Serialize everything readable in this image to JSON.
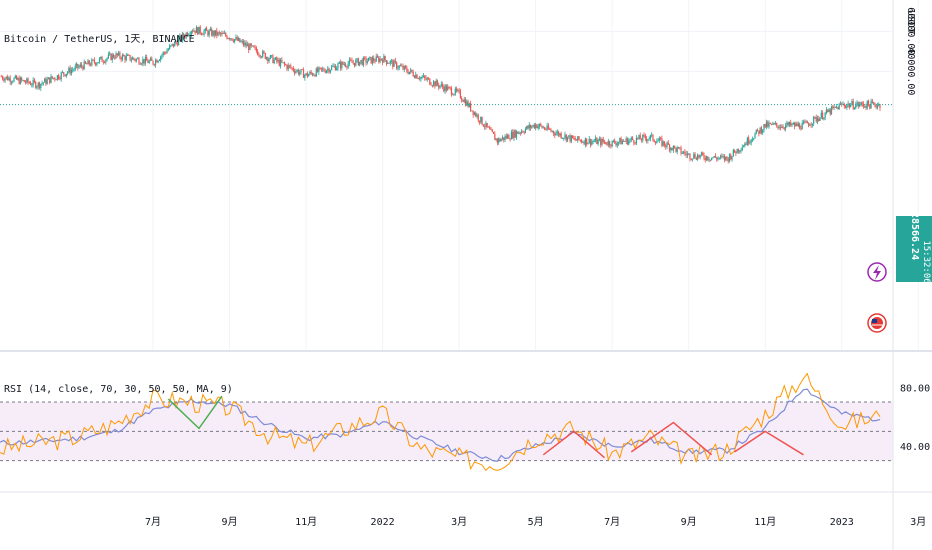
{
  "symbol_label": "Bitcoin / TetherUS, 1天, BINANCE",
  "indicator_label": "RSI (14, close, 70, 30, 50, 50, MA, 9)",
  "price_axis": {
    "unit": "USDT",
    "ticks": [
      {
        "label": "60000.00",
        "value": 60000
      },
      {
        "label": "40000.00",
        "value": 40000
      }
    ]
  },
  "rsi_axis": {
    "ticks": [
      {
        "label": "80.00",
        "value": 80
      },
      {
        "label": "40.00",
        "value": 40
      }
    ]
  },
  "time_axis": {
    "labels": [
      {
        "label": "7月",
        "index": 4
      },
      {
        "label": "9月",
        "index": 6
      },
      {
        "label": "11月",
        "index": 8
      },
      {
        "label": "2022",
        "index": 10
      },
      {
        "label": "3月",
        "index": 12
      },
      {
        "label": "5月",
        "index": 14
      },
      {
        "label": "7月",
        "index": 16
      },
      {
        "label": "9月",
        "index": 18
      },
      {
        "label": "11月",
        "index": 20
      },
      {
        "label": "2023",
        "index": 22
      },
      {
        "label": "3月",
        "index": 24
      }
    ]
  },
  "current_price": {
    "label": "28566.24",
    "countdown": "15:32:06",
    "value": 28566.24
  },
  "colors": {
    "up": "#26a69a",
    "down": "#ef5350",
    "rsi_line": "#ff9800",
    "rsi_ma": "#7e8bd6",
    "rsi_band": "#f3e5f5",
    "price_line": "#26a69a",
    "div_bull": "#4caf50",
    "div_bear": "#ef5350",
    "lightning": "#9c27b0",
    "flag": "#e53935"
  },
  "chart_data": [
    {
      "type": "candlestick",
      "title": "Bitcoin / TetherUS, 1天, BINANCE",
      "ylabel": "USDT",
      "ylim": [
        2500,
        73000
      ],
      "x": [
        "2021-05",
        "2021-06",
        "2021-07",
        "2021-08",
        "2021-09",
        "2021-10",
        "2021-11",
        "2021-12",
        "2022-01",
        "2022-02",
        "2022-03",
        "2022-04",
        "2022-05",
        "2022-06",
        "2022-07",
        "2022-08",
        "2022-09",
        "2022-10",
        "2022-11",
        "2022-12",
        "2023-01",
        "2023-02",
        "2023-03",
        "2023-04"
      ],
      "close": [
        38000,
        35000,
        41500,
        47000,
        43800,
        61300,
        57000,
        46200,
        38500,
        43200,
        45500,
        37700,
        31800,
        19800,
        23300,
        20000,
        19400,
        20500,
        17100,
        16500,
        23100,
        23100,
        28500,
        28566
      ],
      "grid": true
    },
    {
      "type": "line",
      "title": "RSI (14, close, 70, 30, 50, 50, MA, 9)",
      "ylim": [
        10,
        100
      ],
      "bands": {
        "upper": 70,
        "middle": 50,
        "lower": 30
      },
      "series": [
        {
          "values": [
            38,
            42,
            46,
            55,
            72,
            70,
            66,
            48,
            40,
            52,
            62,
            38,
            32,
            28,
            46,
            52,
            35,
            46,
            32,
            38,
            62,
            88,
            55,
            60
          ]
        },
        {
          "values": [
            42,
            43,
            45,
            50,
            64,
            71,
            68,
            55,
            45,
            48,
            57,
            45,
            36,
            31,
            40,
            48,
            40,
            44,
            36,
            37,
            52,
            80,
            62,
            58
          ]
        }
      ]
    }
  ]
}
